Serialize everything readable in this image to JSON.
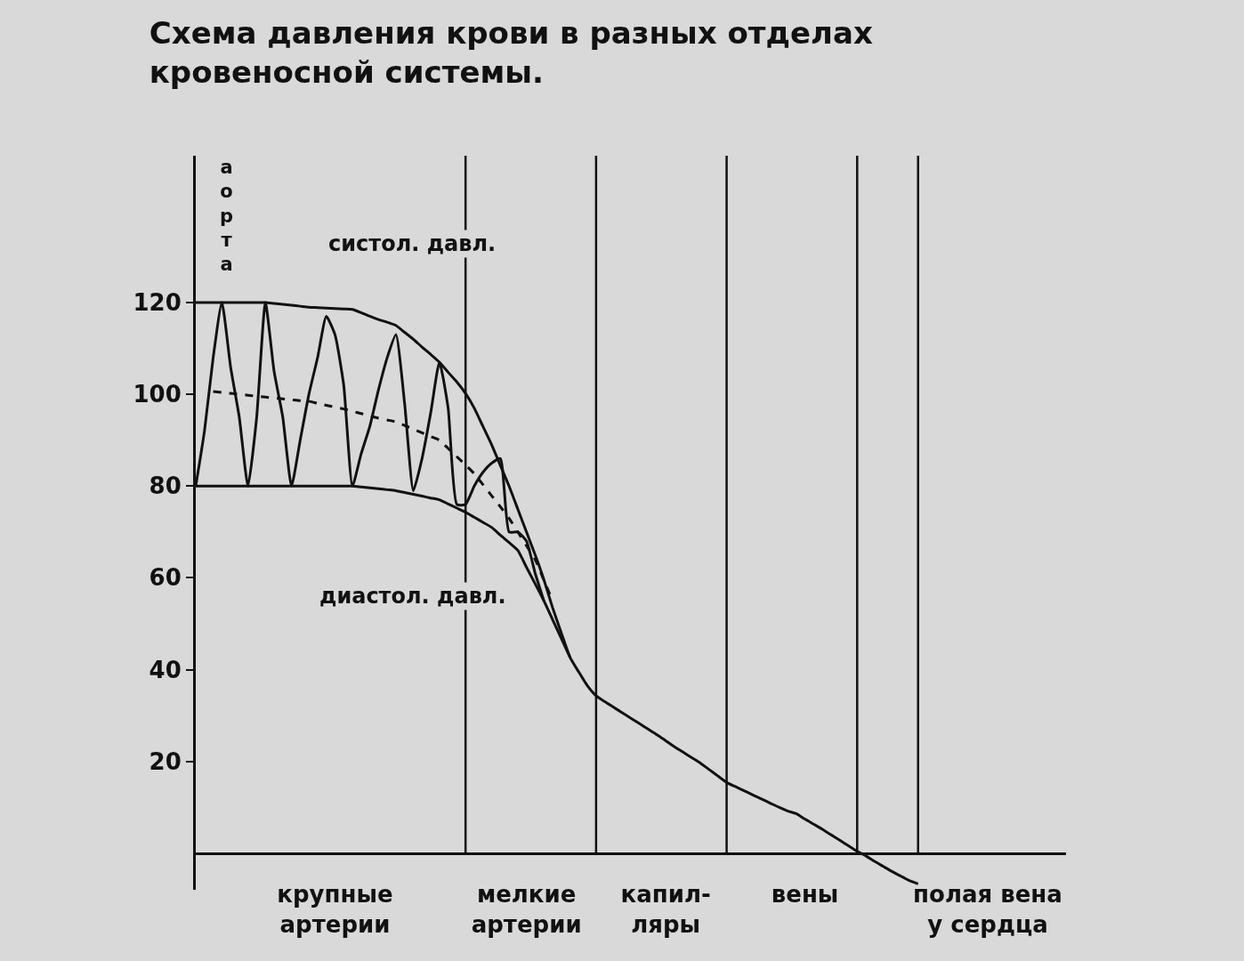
{
  "chart_data": {
    "type": "line",
    "title": "Схема давления крови в разных отделах\nкровеносной системы.",
    "categories": [
      null,
      null,
      null,
      null,
      null,
      null,
      null,
      null,
      null,
      null,
      null,
      null,
      null,
      null,
      null,
      null,
      "крупные\nартерии",
      null,
      null,
      null,
      null,
      null,
      null,
      null,
      null,
      null,
      null,
      null,
      null,
      null,
      null,
      null,
      null,
      null,
      null,
      null,
      null,
      null,
      "мелкие\nартерии",
      null,
      null,
      null,
      null,
      null,
      null,
      null,
      null,
      null,
      null,
      null,
      null,
      null,
      null,
      null,
      "капил-\nляры",
      null,
      null,
      null,
      null,
      null,
      null,
      null,
      null,
      null,
      null,
      null,
      null,
      null,
      null,
      null,
      "вены",
      null,
      null,
      null,
      null,
      null,
      null,
      null,
      null,
      null,
      null,
      null,
      null,
      null,
      null,
      null,
      null,
      null,
      null,
      null,
      null,
      "полая вена\nу сердца",
      null,
      null,
      null,
      null,
      null,
      null,
      null,
      null,
      null
    ],
    "ylim": [
      -8,
      152
    ],
    "yticks": [
      20,
      40,
      60,
      80,
      100,
      120
    ],
    "grid": false,
    "marker": "none",
    "series": [
      {
        "color": "#111111",
        "line_style": "solid",
        "values": [
          120,
          120,
          120,
          120,
          120,
          120,
          120,
          120,
          120,
          119.8,
          119.6,
          119.4,
          119.2,
          119,
          118.9,
          118.8,
          118.7,
          118.6,
          118.5,
          117.8,
          117,
          116.3,
          115.7,
          115,
          113.5,
          112,
          110.3,
          108.7,
          107,
          104.8,
          102.7,
          100.2,
          97,
          93,
          89,
          84.5,
          80,
          75,
          70,
          65,
          59.6,
          53.5,
          48,
          42.7,
          39.5,
          36.5,
          34.3,
          33,
          31.8,
          30.6,
          29.4,
          28.2,
          27,
          25.8,
          24.5,
          23.2,
          22,
          20.8,
          19.6,
          18.2,
          16.8,
          15.4,
          14.5,
          13.6,
          12.7,
          11.8,
          10.9,
          10,
          9.2,
          8.6,
          7.4,
          6.3,
          5.2,
          4,
          2.8,
          1.6,
          0.4,
          -0.6,
          -1.8,
          -2.9,
          -4,
          -5,
          -6,
          -6.7,
          null,
          null,
          null,
          null,
          null,
          null,
          null,
          null,
          null,
          null,
          null,
          null,
          null,
          null,
          null,
          null,
          null
        ]
      },
      {
        "color": "#111111",
        "line_style": "solid",
        "values": [
          80,
          80,
          80,
          80,
          80,
          80,
          80,
          80,
          80,
          80,
          80,
          80,
          80,
          80,
          80,
          80,
          80,
          80,
          80,
          79.8,
          79.6,
          79.4,
          79.2,
          79,
          78.6,
          78.2,
          77.8,
          77.4,
          77,
          76.1,
          75.2,
          74.3,
          73.2,
          72.1,
          71,
          69.3,
          67.7,
          66,
          62.3,
          58.7,
          55,
          50.9,
          46.8,
          42.7,
          null,
          null,
          null,
          null,
          null,
          null,
          null,
          null,
          null,
          null,
          null,
          null,
          null,
          null,
          null,
          null,
          null,
          null,
          null,
          null,
          null,
          null,
          null,
          null,
          null,
          null,
          null,
          null,
          null,
          null,
          null,
          null,
          null,
          null,
          null,
          null,
          null,
          null,
          null,
          null,
          null,
          null,
          null,
          null,
          null,
          null,
          null,
          null,
          null,
          null,
          null,
          null,
          null,
          null,
          null,
          null,
          null
        ]
      },
      {
        "color": "#111111",
        "line_style": "dashed",
        "values": [
          null,
          null,
          100.6,
          100.4,
          100.2,
          100,
          99.8,
          99.6,
          99.4,
          99.2,
          99,
          98.8,
          98.6,
          98.5,
          98,
          97.6,
          97.2,
          96.8,
          96.3,
          95.8,
          95.3,
          94.8,
          94.4,
          94,
          93.2,
          92.4,
          91.6,
          90.8,
          90,
          88.2,
          86.4,
          84.6,
          82.7,
          80.3,
          77.9,
          75.5,
          73,
          70,
          67,
          64,
          59.5,
          55,
          null,
          null,
          null,
          null,
          null,
          null,
          null,
          null,
          null,
          null,
          null,
          null,
          null,
          null,
          null,
          null,
          null,
          null,
          null,
          null,
          null,
          null,
          null,
          null,
          null,
          null,
          null,
          null,
          null,
          null,
          null,
          null,
          null,
          null,
          null,
          null,
          null,
          null,
          null,
          null,
          null,
          null,
          null,
          null,
          null,
          null,
          null,
          null,
          null,
          null,
          null,
          null,
          null,
          null,
          null,
          null,
          null,
          null,
          null
        ]
      },
      {
        "color": "#111111",
        "line_style": "solid",
        "values": [
          80,
          92,
          108,
          120,
          106,
          95,
          80,
          95,
          120,
          105,
          95,
          80,
          90,
          100,
          108,
          117,
          113,
          102,
          80,
          87,
          93,
          101,
          108,
          113,
          98,
          79,
          86,
          96,
          107,
          97,
          76,
          76,
          80,
          83,
          85,
          86,
          70,
          70,
          68,
          61,
          55,
          null,
          null,
          null,
          null,
          null,
          null,
          null,
          null,
          null,
          null,
          null,
          null,
          null,
          null,
          null,
          null,
          null,
          null,
          null,
          null,
          null,
          null,
          null,
          null,
          null,
          null,
          null,
          null,
          null,
          null,
          null,
          null,
          null,
          null,
          null,
          null,
          null,
          null,
          null,
          null,
          null,
          null,
          null,
          null,
          null,
          null,
          null,
          null,
          null,
          null,
          null,
          null,
          null,
          null,
          null,
          null,
          null,
          null,
          null,
          null
        ]
      }
    ],
    "annotations": [
      "систол. давл.",
      "диастол. давл.",
      "а\nо\nр\nт\nа"
    ]
  }
}
